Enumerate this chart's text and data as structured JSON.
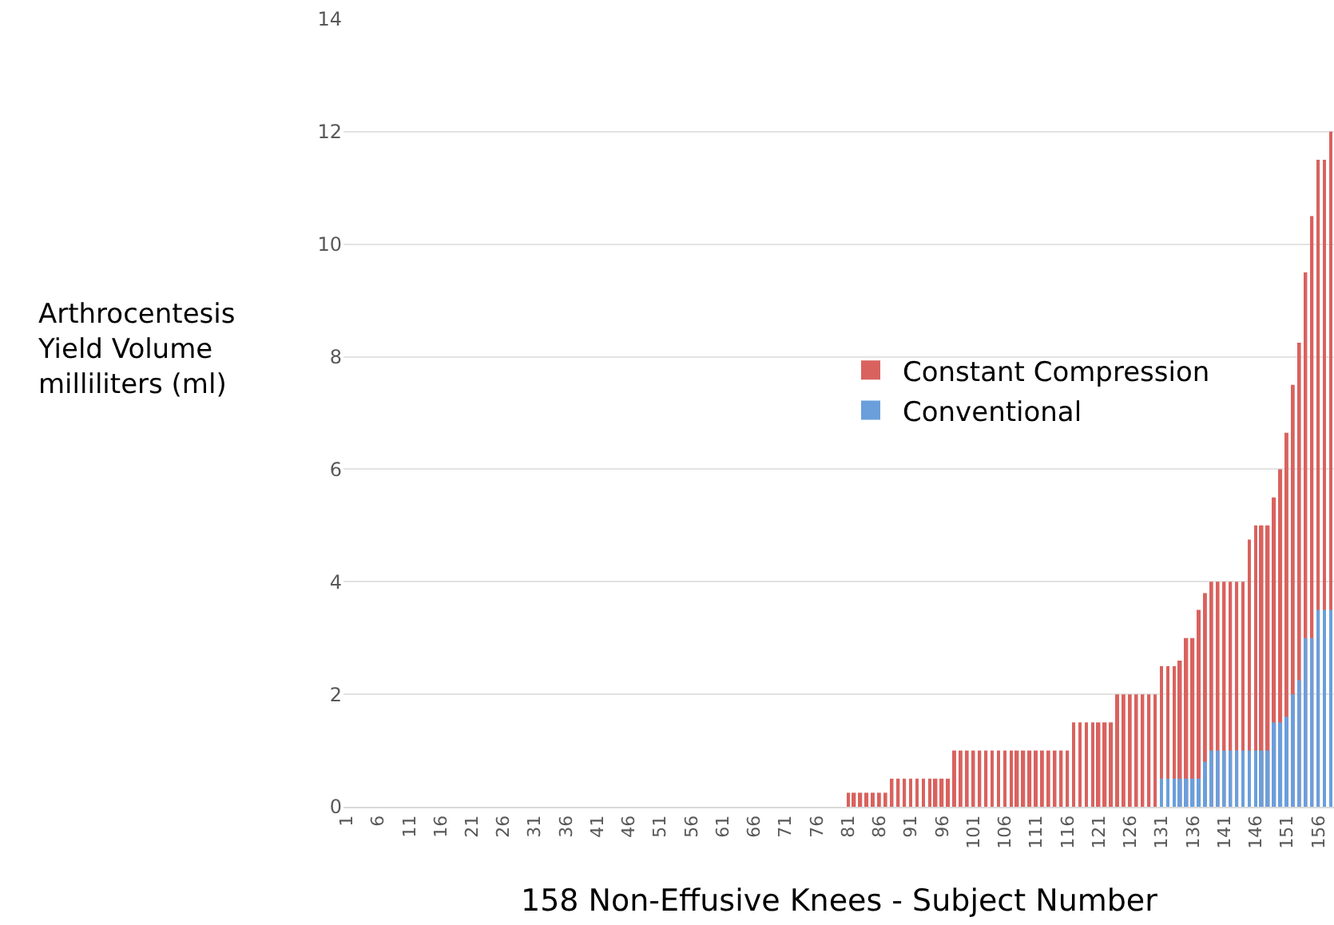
{
  "chart_data": {
    "type": "bar",
    "xlabel": "158 Non-Effusive Knees - Subject Number",
    "ylabel": "Arthrocentesis\nYield Volume\nmilliliters (ml)",
    "categories": [
      "1",
      null,
      null,
      null,
      null,
      "6",
      null,
      null,
      null,
      null,
      "11",
      null,
      null,
      null,
      null,
      "16",
      null,
      null,
      null,
      null,
      "21",
      null,
      null,
      null,
      null,
      "26",
      null,
      null,
      null,
      null,
      "31",
      null,
      null,
      null,
      null,
      "36",
      null,
      null,
      null,
      null,
      "41",
      null,
      null,
      null,
      null,
      "46",
      null,
      null,
      null,
      null,
      "51",
      null,
      null,
      null,
      null,
      "56",
      null,
      null,
      null,
      null,
      "61",
      null,
      null,
      null,
      null,
      "66",
      null,
      null,
      null,
      null,
      "71",
      null,
      null,
      null,
      null,
      "76",
      null,
      null,
      null,
      null,
      "81",
      null,
      null,
      null,
      null,
      "86",
      null,
      null,
      null,
      null,
      "91",
      null,
      null,
      null,
      null,
      "96",
      null,
      null,
      null,
      null,
      "101",
      null,
      null,
      null,
      null,
      "106",
      null,
      null,
      null,
      null,
      "111",
      null,
      null,
      null,
      null,
      "116",
      null,
      null,
      null,
      null,
      "121",
      null,
      null,
      null,
      null,
      "126",
      null,
      null,
      null,
      null,
      "131",
      null,
      null,
      null,
      null,
      "136",
      null,
      null,
      null,
      null,
      "141",
      null,
      null,
      null,
      null,
      "146",
      null,
      null,
      null,
      null,
      "151",
      null,
      null,
      null,
      null,
      "156",
      null,
      null
    ],
    "series": [
      {
        "name": "Constant Compression",
        "color": "#d9625e",
        "values": [
          0,
          0,
          0,
          0,
          0,
          0,
          0,
          0,
          0,
          0,
          0,
          0,
          0,
          0,
          0,
          0,
          0,
          0,
          0,
          0,
          0,
          0,
          0,
          0,
          0,
          0,
          0,
          0,
          0,
          0,
          0,
          0,
          0,
          0,
          0,
          0,
          0,
          0,
          0,
          0,
          0,
          0,
          0,
          0,
          0,
          0,
          0,
          0,
          0,
          0,
          0,
          0,
          0,
          0,
          0,
          0,
          0,
          0,
          0,
          0,
          0,
          0,
          0,
          0,
          0,
          0,
          0,
          0,
          0,
          0,
          0,
          0,
          0,
          0,
          0,
          0,
          0,
          0,
          0,
          0,
          0.25,
          0.25,
          0.25,
          0.25,
          0.25,
          0.25,
          0.25,
          0.5,
          0.5,
          0.5,
          0.5,
          0.5,
          0.5,
          0.5,
          0.5,
          0.5,
          0.5,
          1,
          1,
          1,
          1,
          1,
          1,
          1,
          1,
          1,
          1,
          1,
          1,
          1,
          1,
          1,
          1,
          1,
          1,
          1,
          1.5,
          1.5,
          1.5,
          1.5,
          1.5,
          1.5,
          1.5,
          2,
          2,
          2,
          2,
          2,
          2,
          2,
          2.5,
          2.5,
          2.5,
          2.6,
          3,
          3,
          3.5,
          3.8,
          4,
          4,
          4,
          4,
          4,
          4,
          4.75,
          5,
          5,
          5,
          5.5,
          6,
          6.65,
          7.5,
          8.25,
          9.5,
          10.5,
          11.5,
          11.5,
          12
        ]
      },
      {
        "name": "Conventional",
        "color": "#6a9fdc",
        "values": [
          0,
          0,
          0,
          0,
          0,
          0,
          0,
          0,
          0,
          0,
          0,
          0,
          0,
          0,
          0,
          0,
          0,
          0,
          0,
          0,
          0,
          0,
          0,
          0,
          0,
          0,
          0,
          0,
          0,
          0,
          0,
          0,
          0,
          0,
          0,
          0,
          0,
          0,
          0,
          0,
          0,
          0,
          0,
          0,
          0,
          0,
          0,
          0,
          0,
          0,
          0,
          0,
          0,
          0,
          0,
          0,
          0,
          0,
          0,
          0,
          0,
          0,
          0,
          0,
          0,
          0,
          0,
          0,
          0,
          0,
          0,
          0,
          0,
          0,
          0,
          0,
          0,
          0,
          0,
          0,
          0,
          0,
          0,
          0,
          0,
          0,
          0,
          0,
          0,
          0,
          0,
          0,
          0,
          0,
          0,
          0,
          0,
          0,
          0,
          0,
          0,
          0,
          0,
          0,
          0,
          0,
          0,
          0,
          0,
          0,
          0,
          0,
          0,
          0,
          0,
          0,
          0,
          0,
          0,
          0,
          0,
          0,
          0,
          0,
          0,
          0,
          0,
          0,
          0,
          0,
          0.5,
          0.5,
          0.5,
          0.5,
          0.5,
          0.5,
          0.5,
          0.8,
          1,
          1,
          1,
          1,
          1,
          1,
          1,
          1,
          1,
          1,
          1.5,
          1.5,
          1.6,
          2,
          2.25,
          3,
          3,
          3.5,
          3.5,
          3.5
        ]
      }
    ],
    "ylim": [
      0,
      14
    ],
    "yticks": [
      0,
      2,
      4,
      6,
      8,
      10,
      12,
      14
    ],
    "grid": "y",
    "legend": "right"
  }
}
